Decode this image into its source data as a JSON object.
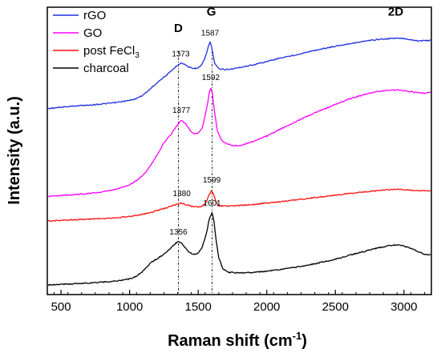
{
  "chart_data": {
    "type": "line",
    "xlabel": "Raman shift (cm",
    "xlabel_sup": "-1",
    "xlabel_tail": ")",
    "ylabel": "Intensity (a.u.)",
    "xlim": [
      400,
      3200
    ],
    "ylim": [
      0,
      100
    ],
    "x_ticks": [
      500,
      1000,
      1500,
      2000,
      2500,
      3000
    ],
    "y_ticks_shown": false,
    "grid": false,
    "legend_position": "top-left",
    "legend": [
      {
        "label": "rGO",
        "color": "#1f2fe0"
      },
      {
        "label": "GO",
        "color": "#ff00ff"
      },
      {
        "label": "post FeCl",
        "sub": "3",
        "color": "#ff1010"
      },
      {
        "label": "charcoal",
        "color": "#000000"
      }
    ],
    "band_labels": [
      {
        "text": "D",
        "x": 1355,
        "y": 93
      },
      {
        "text": "G",
        "x": 1596,
        "y": 99
      },
      {
        "text": "2D",
        "x": 2940,
        "y": 99
      }
    ],
    "reference_lines": [
      1356,
      1601
    ],
    "series": [
      {
        "name": "rGO",
        "color": "#1f2fe0",
        "x": [
          400,
          500,
          600,
          700,
          800,
          900,
          1000,
          1050,
          1100,
          1150,
          1200,
          1250,
          1300,
          1340,
          1373,
          1400,
          1430,
          1460,
          1490,
          1520,
          1550,
          1570,
          1587,
          1600,
          1620,
          1650,
          1700,
          1750,
          1800,
          1900,
          2000,
          2100,
          2200,
          2300,
          2400,
          2500,
          2600,
          2700,
          2800,
          2900,
          2950,
          3000,
          3050,
          3100,
          3150,
          3200
        ],
        "y": [
          65,
          65.5,
          66,
          66.3,
          66.7,
          67.2,
          68,
          68.7,
          70,
          72.2,
          74.5,
          76.5,
          78.5,
          80.5,
          81.7,
          81.2,
          80.2,
          79.8,
          79.7,
          80.5,
          83.5,
          87,
          89.5,
          87,
          81.5,
          79.5,
          79.3,
          79.5,
          80,
          81,
          82.2,
          83.5,
          84.5,
          85.7,
          86.8,
          87.8,
          88.7,
          89.5,
          90.2,
          90.6,
          90.7,
          90.6,
          90.2,
          89.8,
          89.8,
          90
        ]
      },
      {
        "name": "GO",
        "color": "#ff00ff",
        "x": [
          400,
          500,
          600,
          700,
          800,
          900,
          1000,
          1050,
          1100,
          1150,
          1200,
          1250,
          1300,
          1340,
          1377,
          1410,
          1440,
          1470,
          1500,
          1530,
          1560,
          1580,
          1592,
          1605,
          1620,
          1640,
          1670,
          1700,
          1750,
          1800,
          1900,
          2000,
          2100,
          2200,
          2300,
          2400,
          2500,
          2600,
          2700,
          2800,
          2900,
          2950,
          3000,
          3050,
          3100,
          3150,
          3200
        ],
        "y": [
          33,
          33.3,
          33.6,
          34,
          34.5,
          35.5,
          37.2,
          38.7,
          40.8,
          44,
          48,
          52.5,
          55.5,
          58.5,
          60.8,
          59.5,
          57,
          55.8,
          56,
          58,
          64.5,
          70.5,
          72.5,
          70,
          63.5,
          57,
          53.5,
          52.3,
          51.5,
          51.5,
          53,
          55,
          57.5,
          60,
          62.3,
          64.5,
          66.5,
          68.5,
          70,
          71.2,
          71.8,
          71.8,
          71.6,
          71.2,
          70.8,
          70.6,
          71
        ]
      },
      {
        "name": "post FeCl3",
        "color": "#ff1010",
        "x": [
          400,
          500,
          600,
          700,
          800,
          900,
          1000,
          1050,
          1100,
          1150,
          1200,
          1250,
          1300,
          1340,
          1380,
          1420,
          1460,
          1500,
          1530,
          1560,
          1580,
          1599,
          1615,
          1630,
          1650,
          1700,
          1800,
          1900,
          2000,
          2100,
          2200,
          2300,
          2400,
          2500,
          2600,
          2700,
          2800,
          2900,
          2950,
          3000,
          3050,
          3100,
          3150,
          3200
        ],
        "y": [
          24,
          24.2,
          24.4,
          24.6,
          24.9,
          25.2,
          25.6,
          26,
          26.4,
          27,
          27.8,
          28.5,
          29.3,
          30,
          30.5,
          29.8,
          29.2,
          29,
          29.3,
          31,
          33.5,
          35,
          33.3,
          30.8,
          29.5,
          29.4,
          29.6,
          30,
          30.5,
          31,
          31.6,
          32.2,
          32.8,
          33.4,
          34,
          34.5,
          35,
          35.4,
          35.5,
          35.4,
          35.2,
          35,
          35,
          35
        ]
      },
      {
        "name": "charcoal",
        "color": "#000000",
        "x": [
          400,
          500,
          600,
          700,
          800,
          900,
          1000,
          1050,
          1100,
          1150,
          1200,
          1250,
          1300,
          1330,
          1356,
          1380,
          1410,
          1440,
          1470,
          1500,
          1530,
          1560,
          1580,
          1601,
          1615,
          1630,
          1650,
          1680,
          1720,
          1800,
          1900,
          2000,
          2100,
          2200,
          2300,
          2400,
          2500,
          2600,
          2700,
          2800,
          2900,
          2950,
          3000,
          3050,
          3100,
          3150,
          3200
        ],
        "y": [
          0.6,
          0.8,
          1,
          1.3,
          1.6,
          2,
          2.8,
          3.8,
          5.8,
          8.5,
          10.2,
          11.8,
          14,
          15.6,
          16.5,
          15.8,
          14,
          12.3,
          11.7,
          12.1,
          14.5,
          19.5,
          24.5,
          27,
          24,
          17,
          10.5,
          6.5,
          5.2,
          5,
          5.2,
          5.6,
          6.2,
          7,
          7.8,
          8.9,
          10,
          11.4,
          12.7,
          14,
          15,
          15.2,
          14.8,
          14,
          12.8,
          11.8,
          11.5
        ]
      }
    ],
    "peak_labels": [
      {
        "series": "rGO",
        "text": "1373",
        "x": 1373,
        "y": 84
      },
      {
        "series": "rGO",
        "text": "1587",
        "x": 1587,
        "y": 91.7
      },
      {
        "series": "GO",
        "text": "1377",
        "x": 1377,
        "y": 63.5
      },
      {
        "series": "GO",
        "text": "1592",
        "x": 1592,
        "y": 75.5
      },
      {
        "series": "post FeCl3",
        "text": "1380",
        "x": 1380,
        "y": 33
      },
      {
        "series": "post FeCl3",
        "text": "1599",
        "x": 1599,
        "y": 38
      },
      {
        "series": "charcoal",
        "text": "1356",
        "x": 1356,
        "y": 19
      },
      {
        "series": "charcoal",
        "text": "1601",
        "x": 1601,
        "y": 29.5
      }
    ]
  }
}
